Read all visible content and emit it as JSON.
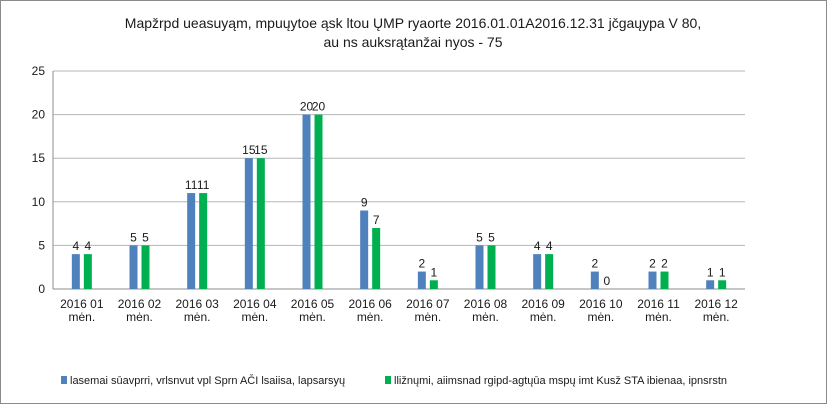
{
  "chart_data": {
    "type": "bar",
    "title_lines": [
      "Mapžrpd ueasuyąm, mpuųytoe ąsk ltou ŲMP ryaorte 2016.01.01A2016.12.31  jčgaųypa V 80,",
      "au ns auksrątanžai nyos - 75"
    ],
    "categories": [
      "2016 01\nmėn.",
      "2016 02\nmėn.",
      "2016 03\nmėn.",
      "2016 04\nmėn.",
      "2016 05\nmėn.",
      "2016 06\nmėn.",
      "2016 07\nmėn.",
      "2016 08\nmėn.",
      "2016 09\nmėn.",
      "2016 10\nmėn.",
      "2016 11\nmėn.",
      "2016 12\nmėn."
    ],
    "series": [
      {
        "name": "lasemai sūavprri, vrlsnvut vpl Sprn AČI lsaiisa, lapsarsyų",
        "color": "#4F81BD",
        "values": [
          4,
          5,
          11,
          15,
          20,
          9,
          2,
          5,
          4,
          2,
          2,
          1
        ]
      },
      {
        "name": "lližnųmi, aiimsnad rgipd-agtųūa mspų imt Kusž STA ibienaa, ipnsrstn",
        "color": "#00B050",
        "values": [
          4,
          5,
          11,
          15,
          20,
          7,
          1,
          5,
          4,
          0,
          2,
          1
        ]
      }
    ],
    "ylim": [
      0,
      25
    ],
    "yticks": [
      0,
      5,
      10,
      15,
      20,
      25
    ],
    "grid": true,
    "legend": "bottom"
  }
}
